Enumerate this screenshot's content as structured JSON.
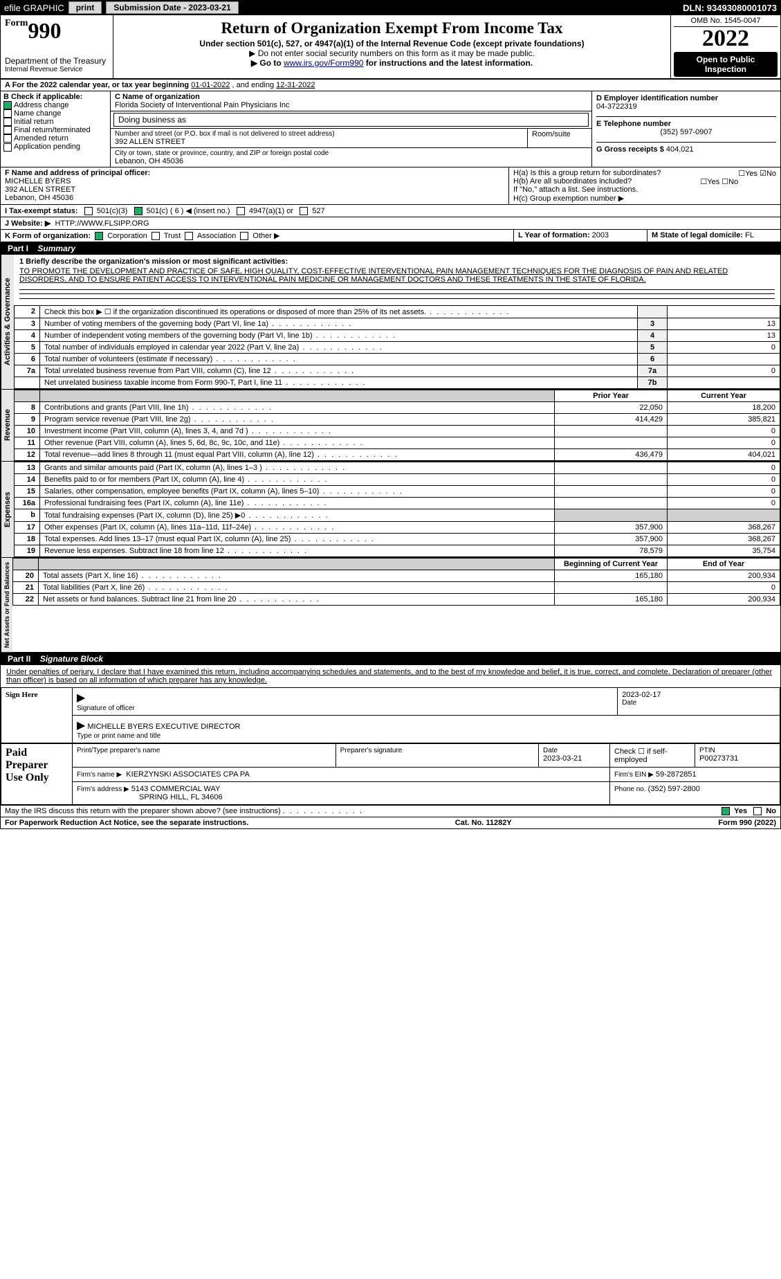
{
  "topbar": {
    "efile_label": "efile GRAPHIC",
    "print_btn": "print",
    "submission_label": "Submission Date - 2023-03-21",
    "dln": "DLN: 93493080001073"
  },
  "header": {
    "form_prefix": "Form",
    "form_number": "990",
    "title": "Return of Organization Exempt From Income Tax",
    "subtitle": "Under section 501(c), 527, or 4947(a)(1) of the Internal Revenue Code (except private foundations)",
    "ssn_note": "▶ Do not enter social security numbers on this form as it may be made public.",
    "goto": "▶ Go to ",
    "irs_url": "www.irs.gov/Form990",
    "goto_suffix": " for instructions and the latest information.",
    "omb": "OMB No. 1545-0047",
    "year": "2022",
    "open": "Open to Public Inspection",
    "dept": "Department of the Treasury",
    "irs": "Internal Revenue Service"
  },
  "sectionA": {
    "a_text": "A For the 2022 calendar year, or tax year beginning",
    "period_begin": "01-01-2022",
    "and_ending": ", and ending",
    "period_end": "12-31-2022",
    "b_label": "B Check if applicable:",
    "b_address": "Address change",
    "b_name": "Name change",
    "b_initial": "Initial return",
    "b_final": "Final return/terminated",
    "b_amended": "Amended return",
    "b_app": "Application pending",
    "c_label": "C Name of organization",
    "c_name": "Florida Society of Interventional Pain Physicians Inc",
    "dba_label": "Doing business as",
    "addr_label": "Number and street (or P.O. box if mail is not delivered to street address)",
    "room": "Room/suite",
    "addr": "392 ALLEN STREET",
    "city_label": "City or town, state or province, country, and ZIP or foreign postal code",
    "city": "Lebanon, OH  45036",
    "d_label": "D Employer identification number",
    "ein": "04-3722319",
    "e_label": "E Telephone number",
    "tel": "(352) 597-0907",
    "g_label": "G Gross receipts $",
    "g_val": "404,021",
    "f_label": "F Name and address of principal officer:",
    "f_name": "MICHELLE BYERS",
    "f_addr1": "392 ALLEN STREET",
    "f_addr2": "Lebanon, OH  45036",
    "ha_label": "H(a)  Is this a group return for subordinates?",
    "hb_label": "H(b)  Are all subordinates included?",
    "hb_note": "If \"No,\" attach a list. See instructions.",
    "hc_label": "H(c)  Group exemption number ▶",
    "yes": "Yes",
    "no": "No",
    "i_label": "I   Tax-exempt status:",
    "i_501c3": "501(c)(3)",
    "i_501c": "501(c) ( 6 ) ◀ (insert no.)",
    "i_4947": "4947(a)(1) or",
    "i_527": "527",
    "j_label": "J   Website: ▶",
    "j_url": "HTTP://WWW.FLSIPP.ORG",
    "k_label": "K Form of organization:",
    "k_corp": "Corporation",
    "k_trust": "Trust",
    "k_assoc": "Association",
    "k_other": "Other ▶",
    "l_label": "L Year of formation:",
    "l_val": "2003",
    "m_label": "M State of legal domicile:",
    "m_val": "FL"
  },
  "partI": {
    "header_n": "Part I",
    "header_t": "Summary",
    "q1_label": "1  Briefly describe the organization's mission or most significant activities:",
    "mission": "TO PROMOTE THE DEVELOPMENT AND PRACTICE OF SAFE, HIGH QUALITY, COST-EFFECTIVE INTERVENTIONAL PAIN MANAGEMENT TECHNIQUES FOR THE DIAGNOSIS OF PAIN AND RELATED DISORDERS, AND TO ENSURE PATIENT ACCESS TO INTERVENTIONAL PAIN MEDICINE OR MANAGEMENT DOCTORS AND THESE TREATMENTS IN THE STATE OF FLORIDA.",
    "vert_gov": "Activities & Governance",
    "vert_rev": "Revenue",
    "vert_exp": "Expenses",
    "vert_net": "Net Assets or Fund Balances",
    "lines_gov": [
      {
        "n": "2",
        "desc": "Check this box ▶ ☐  if the organization discontinued its operations or disposed of more than 25% of its net assets.",
        "slot": "",
        "val": ""
      },
      {
        "n": "3",
        "desc": "Number of voting members of the governing body (Part VI, line 1a)",
        "slot": "3",
        "val": "13"
      },
      {
        "n": "4",
        "desc": "Number of independent voting members of the governing body (Part VI, line 1b)",
        "slot": "4",
        "val": "13"
      },
      {
        "n": "5",
        "desc": "Total number of individuals employed in calendar year 2022 (Part V, line 2a)",
        "slot": "5",
        "val": "0"
      },
      {
        "n": "6",
        "desc": "Total number of volunteers (estimate if necessary)",
        "slot": "6",
        "val": ""
      },
      {
        "n": "7a",
        "desc": "Total unrelated business revenue from Part VIII, column (C), line 12",
        "slot": "7a",
        "val": "0"
      },
      {
        "n": "",
        "desc": "Net unrelated business taxable income from Form 990-T, Part I, line 11",
        "slot": "7b",
        "val": ""
      }
    ],
    "prior_year": "Prior Year",
    "current_year": "Current Year",
    "lines_rev": [
      {
        "n": "8",
        "desc": "Contributions and grants (Part VIII, line 1h)",
        "prior": "22,050",
        "curr": "18,200"
      },
      {
        "n": "9",
        "desc": "Program service revenue (Part VIII, line 2g)",
        "prior": "414,429",
        "curr": "385,821"
      },
      {
        "n": "10",
        "desc": "Investment income (Part VIII, column (A), lines 3, 4, and 7d )",
        "prior": "",
        "curr": "0"
      },
      {
        "n": "11",
        "desc": "Other revenue (Part VIII, column (A), lines 5, 6d, 8c, 9c, 10c, and 11e)",
        "prior": "",
        "curr": "0"
      },
      {
        "n": "12",
        "desc": "Total revenue—add lines 8 through 11 (must equal Part VIII, column (A), line 12)",
        "prior": "436,479",
        "curr": "404,021"
      }
    ],
    "lines_exp": [
      {
        "n": "13",
        "desc": "Grants and similar amounts paid (Part IX, column (A), lines 1–3 )",
        "prior": "",
        "curr": "0"
      },
      {
        "n": "14",
        "desc": "Benefits paid to or for members (Part IX, column (A), line 4)",
        "prior": "",
        "curr": "0"
      },
      {
        "n": "15",
        "desc": "Salaries, other compensation, employee benefits (Part IX, column (A), lines 5–10)",
        "prior": "",
        "curr": "0"
      },
      {
        "n": "16a",
        "desc": "Professional fundraising fees (Part IX, column (A), line 11e)",
        "prior": "",
        "curr": "0"
      },
      {
        "n": "b",
        "desc": "Total fundraising expenses (Part IX, column (D), line 25) ▶0",
        "prior": "GRAY",
        "curr": "GRAY"
      },
      {
        "n": "17",
        "desc": "Other expenses (Part IX, column (A), lines 11a–11d, 11f–24e)",
        "prior": "357,900",
        "curr": "368,267"
      },
      {
        "n": "18",
        "desc": "Total expenses. Add lines 13–17 (must equal Part IX, column (A), line 25)",
        "prior": "357,900",
        "curr": "368,267"
      },
      {
        "n": "19",
        "desc": "Revenue less expenses. Subtract line 18 from line 12",
        "prior": "78,579",
        "curr": "35,754"
      }
    ],
    "boy": "Beginning of Current Year",
    "eoy": "End of Year",
    "lines_net": [
      {
        "n": "20",
        "desc": "Total assets (Part X, line 16)",
        "prior": "165,180",
        "curr": "200,934"
      },
      {
        "n": "21",
        "desc": "Total liabilities (Part X, line 26)",
        "prior": "",
        "curr": "0"
      },
      {
        "n": "22",
        "desc": "Net assets or fund balances. Subtract line 21 from line 20",
        "prior": "165,180",
        "curr": "200,934"
      }
    ]
  },
  "partII": {
    "header_n": "Part II",
    "header_t": "Signature Block",
    "penalties": "Under penalties of perjury, I declare that I have examined this return, including accompanying schedules and statements, and to the best of my knowledge and belief, it is true, correct, and complete. Declaration of preparer (other than officer) is based on all information of which preparer has any knowledge.",
    "sign_here": "Sign Here",
    "sig_officer": "Signature of officer",
    "sig_date": "Date",
    "sig_date_val": "2023-02-17",
    "sig_name": "MICHELLE BYERS  EXECUTIVE DIRECTOR",
    "sig_name_label": "Type or print name and title",
    "paid": "Paid Preparer Use Only",
    "prep_name_label": "Print/Type preparer's name",
    "prep_sig_label": "Preparer's signature",
    "date_label": "Date",
    "prep_date": "2023-03-21",
    "check_if": "Check ☐ if self-employed",
    "ptin_label": "PTIN",
    "ptin": "P00273731",
    "firm_name_label": "Firm's name    ▶",
    "firm_name": "KIERZYNSKI ASSOCIATES CPA PA",
    "firm_ein_label": "Firm's EIN ▶",
    "firm_ein": "59-2872851",
    "firm_addr_label": "Firm's address ▶",
    "firm_addr1": "5143 COMMERCIAL WAY",
    "firm_addr2": "SPRING HILL, FL  34606",
    "phone_label": "Phone no.",
    "phone": "(352) 597-2800",
    "may_irs": "May the IRS discuss this return with the preparer shown above? (see instructions)",
    "may_yes": "Yes",
    "may_no": "No"
  },
  "footer": {
    "left": "For Paperwork Reduction Act Notice, see the separate instructions.",
    "mid": "Cat. No. 11282Y",
    "right": "Form 990 (2022)"
  }
}
